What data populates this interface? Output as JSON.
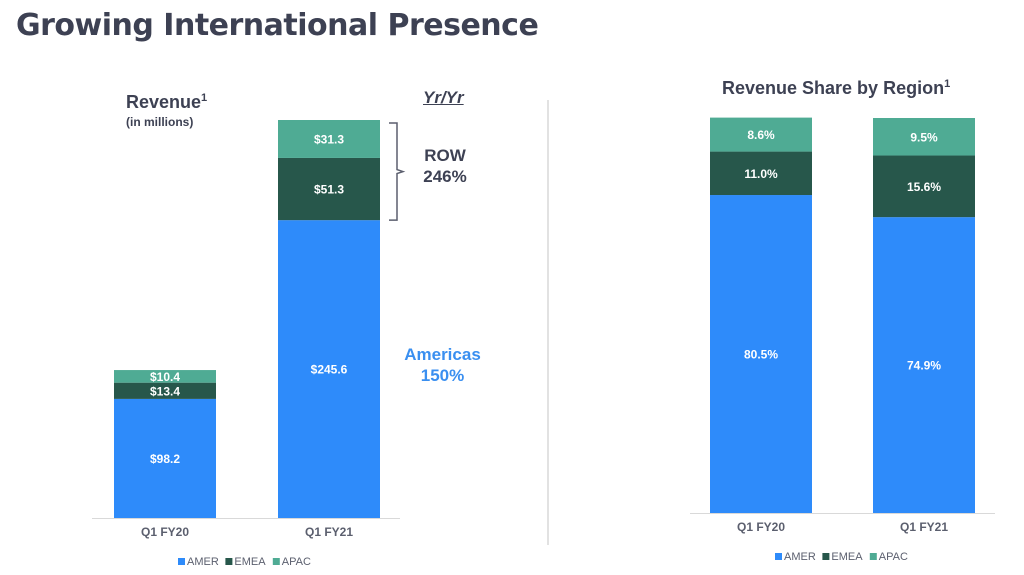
{
  "page": {
    "title": "Growing International Presence"
  },
  "colors": {
    "AMER": "#2e8bfa",
    "EMEA": "#27574b",
    "APAC": "#4fab94",
    "text": "#3d4153",
    "callout_blue": "#3a8ff0"
  },
  "chart_data": [
    {
      "type": "bar",
      "stacked": true,
      "title": "Revenue",
      "title_superscript": "1",
      "subtitle": "(in millions)",
      "categories": [
        "Q1 FY20",
        "Q1 FY21"
      ],
      "series": [
        {
          "name": "AMER",
          "values": [
            98.2,
            245.6
          ],
          "labels": [
            "$98.2",
            "$245.6"
          ]
        },
        {
          "name": "EMEA",
          "values": [
            13.4,
            51.3
          ],
          "labels": [
            "$13.4",
            "$51.3"
          ]
        },
        {
          "name": "APAC",
          "values": [
            10.4,
            31.3
          ],
          "labels": [
            "$10.4",
            "$31.3"
          ]
        }
      ],
      "ylim": [
        0,
        328.2
      ],
      "legend": {
        "position": "bottom",
        "entries": [
          "AMER",
          "EMEA",
          "APAC"
        ]
      },
      "annotations": {
        "header": "Yr/Yr",
        "row": {
          "label": "ROW",
          "value": "246%"
        },
        "americas": {
          "label": "Americas",
          "value": "150%"
        }
      }
    },
    {
      "type": "bar",
      "stacked": true,
      "title": "Revenue Share by Region",
      "title_superscript": "1",
      "categories": [
        "Q1 FY20",
        "Q1 FY21"
      ],
      "series": [
        {
          "name": "AMER",
          "values": [
            80.5,
            74.9
          ],
          "labels": [
            "80.5%",
            "74.9%"
          ]
        },
        {
          "name": "EMEA",
          "values": [
            11.0,
            15.6
          ],
          "labels": [
            "11.0%",
            "15.6%"
          ]
        },
        {
          "name": "APAC",
          "values": [
            8.6,
            9.5
          ],
          "labels": [
            "8.6%",
            "9.5%"
          ]
        }
      ],
      "ylim": [
        0,
        100
      ],
      "legend": {
        "position": "bottom",
        "entries": [
          "AMER",
          "EMEA",
          "APAC"
        ]
      }
    }
  ]
}
